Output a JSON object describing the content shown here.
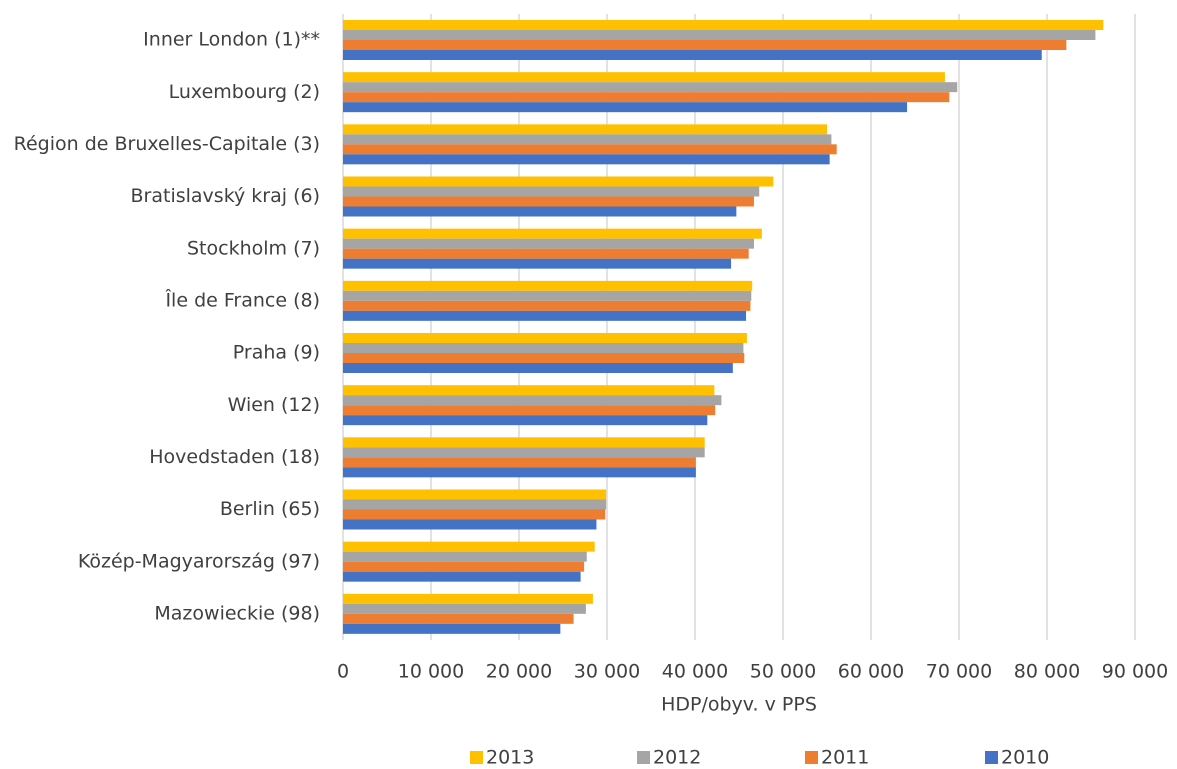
{
  "chart_data": {
    "type": "bar",
    "orientation": "horizontal",
    "x_label": "HDP/obyv. v PPS",
    "categories": [
      "Inner London (1)**",
      "Luxembourg (2)",
      "Région de Bruxelles-Capitale (3)",
      "Bratislavský kraj (6)",
      "Stockholm (7)",
      "Île de France (8)",
      "Praha (9)",
      "Wien (12)",
      "Hovedstaden (18)",
      "Berlin (65)",
      "Közép-Magyarország (97)",
      "Mazowieckie (98)"
    ],
    "series": [
      {
        "name": "2013",
        "color": "#ffc000",
        "values": [
          86400,
          68400,
          55000,
          48900,
          47600,
          46500,
          45900,
          42200,
          41100,
          29900,
          28600,
          28400
        ]
      },
      {
        "name": "2012",
        "color": "#a5a5a5",
        "values": [
          85500,
          69800,
          55500,
          47300,
          46700,
          46400,
          45500,
          43000,
          41100,
          29900,
          27700,
          27600
        ]
      },
      {
        "name": "2011",
        "color": "#ed7d31",
        "values": [
          82200,
          68900,
          56100,
          46700,
          46100,
          46300,
          45600,
          42300,
          40100,
          29800,
          27400,
          26200
        ]
      },
      {
        "name": "2010",
        "color": "#4472c4",
        "values": [
          79400,
          64100,
          55300,
          44700,
          44100,
          45800,
          44300,
          41400,
          40100,
          28800,
          27000,
          24700
        ]
      }
    ],
    "xlim": [
      0,
      90000
    ],
    "xticks": [
      0,
      {
        "value": 10000,
        "label": "10 000"
      },
      {
        "value": 20000,
        "label": "20 000"
      },
      {
        "value": 30000,
        "label": "30 000"
      },
      {
        "value": 40000,
        "label": "40 000"
      },
      {
        "value": 50000,
        "label": "50 000"
      },
      {
        "value": 60000,
        "label": "60 000"
      },
      {
        "value": 70000,
        "label": "70 000"
      },
      {
        "value": 80000,
        "label": "80 000"
      },
      {
        "value": 90000,
        "label": "90 000"
      }
    ],
    "grid": true,
    "legend": "bottom"
  }
}
